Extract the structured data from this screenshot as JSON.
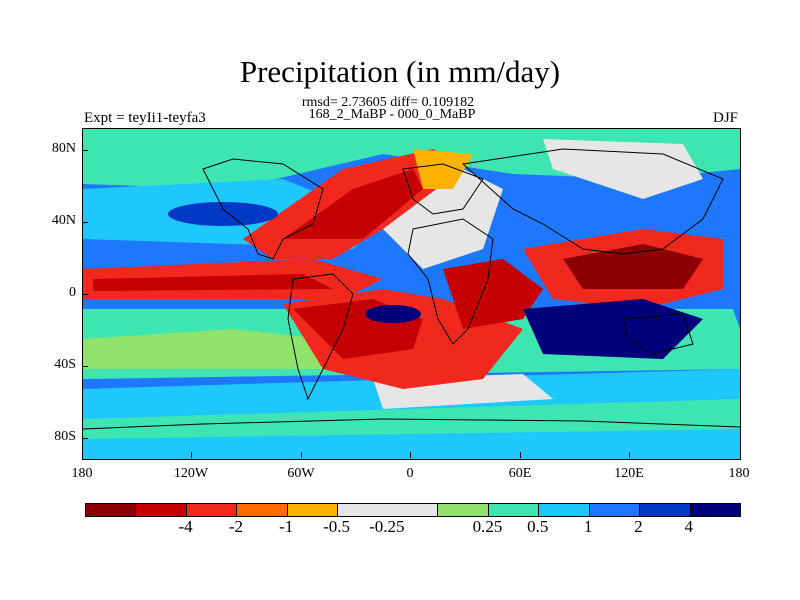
{
  "title": "Precipitation (in mm/day)",
  "subtitle_stats": "rmsd= 2.73605 diff= 0.109182",
  "subtitle_period": "168_2_MaBP - 000_0_MaBP",
  "experiment_label": "Expt = teyIi1-teyfa3",
  "season_label": "DJF",
  "y_tick_labels": [
    "80N",
    "40N",
    "0",
    "40S",
    "80S"
  ],
  "x_tick_labels": [
    "180",
    "120W",
    "60W",
    "0",
    "60E",
    "120E",
    "180"
  ],
  "colorbar": {
    "colors": [
      "#8b0000",
      "#c40000",
      "#f0281e",
      "#ff6a00",
      "#ffb300",
      "#e6e6e6",
      "#e6e6e6",
      "#8fe36a",
      "#3de6b0",
      "#1ec8ff",
      "#1e78ff",
      "#0038c8",
      "#00007a"
    ],
    "labels": [
      "-4",
      "-2",
      "-1",
      "-0.5",
      "-0.25",
      "0.25",
      "0.5",
      "1",
      "2",
      "4"
    ]
  },
  "map": {
    "projection": "cylindrical equidistant",
    "lon_range": [
      -180,
      180
    ],
    "lat_range": [
      -90,
      90
    ],
    "background_color": "#1e90ff",
    "coastline_color": "#000000"
  }
}
